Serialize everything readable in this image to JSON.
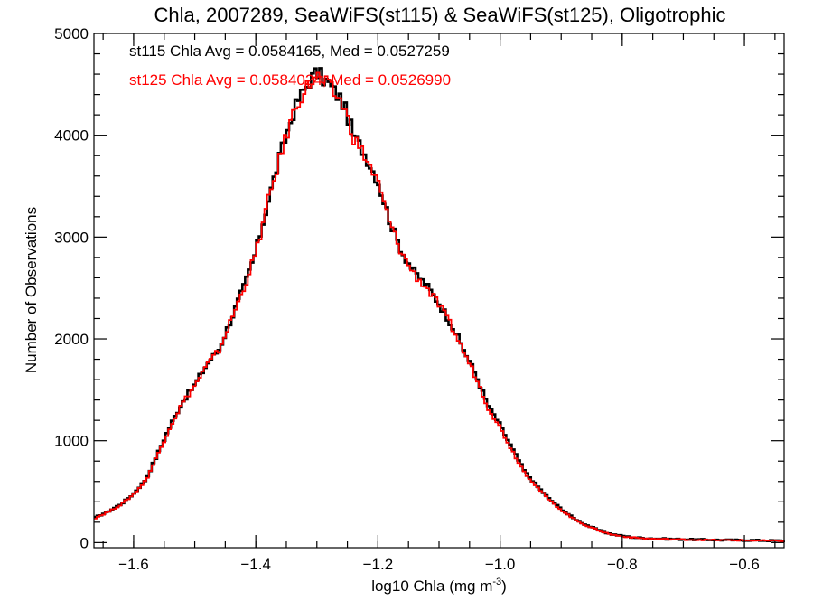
{
  "chart_data": {
    "type": "line",
    "title": "Chla, 2007289, SeaWiFS(st115) & SeaWiFS(st125), Oligotrophic",
    "xlabel": "log10 Chla (mg m",
    "xlabel_sup": "-3",
    "xlabel_end": ")",
    "ylabel": "Number of Observations",
    "xlim": [
      -1.665,
      -0.535
    ],
    "ylim": [
      -50,
      5000
    ],
    "grid": false,
    "x_ticks": [
      -1.6,
      -1.4,
      -1.2,
      -1.0,
      -0.8,
      -0.6
    ],
    "x_tick_labels": [
      "−1.6",
      "−1.4",
      "−1.2",
      "−1.0",
      "−0.8",
      "−0.6"
    ],
    "y_ticks": [
      0,
      1000,
      2000,
      3000,
      4000,
      5000
    ],
    "y_tick_labels": [
      "0",
      "1000",
      "2000",
      "3000",
      "4000",
      "5000"
    ],
    "annotations": [
      {
        "text": "st115 Chla Avg = 0.0584165, Med = 0.0527259",
        "color": "#000000"
      },
      {
        "text": "st125 Chla Avg = 0.0584024, Med = 0.0526990",
        "color": "#ff0000"
      }
    ],
    "series": [
      {
        "color": "#000000",
        "x": [
          -1.665,
          -1.64,
          -1.62,
          -1.6,
          -1.58,
          -1.56,
          -1.54,
          -1.52,
          -1.5,
          -1.48,
          -1.46,
          -1.44,
          -1.42,
          -1.4,
          -1.38,
          -1.36,
          -1.35,
          -1.34,
          -1.33,
          -1.32,
          -1.31,
          -1.3,
          -1.29,
          -1.28,
          -1.27,
          -1.26,
          -1.25,
          -1.24,
          -1.22,
          -1.2,
          -1.18,
          -1.16,
          -1.14,
          -1.12,
          -1.1,
          -1.08,
          -1.06,
          -1.04,
          -1.02,
          -1.0,
          -0.98,
          -0.96,
          -0.94,
          -0.92,
          -0.9,
          -0.88,
          -0.86,
          -0.84,
          -0.82,
          -0.8,
          -0.78,
          -0.76,
          -0.74,
          -0.72,
          -0.7,
          -0.68,
          -0.66,
          -0.64,
          -0.62,
          -0.6,
          -0.58,
          -0.56,
          -0.535
        ],
        "y": [
          240,
          310,
          380,
          480,
          620,
          880,
          1150,
          1380,
          1550,
          1750,
          1900,
          2200,
          2500,
          2850,
          3350,
          3800,
          4000,
          4200,
          4350,
          4450,
          4550,
          4620,
          4560,
          4500,
          4420,
          4350,
          4200,
          4000,
          3800,
          3550,
          3150,
          2850,
          2650,
          2520,
          2350,
          2150,
          1900,
          1650,
          1350,
          1150,
          920,
          700,
          560,
          430,
          330,
          240,
          175,
          125,
          85,
          65,
          50,
          42,
          38,
          35,
          32,
          30,
          28,
          26,
          25,
          24,
          22,
          20,
          18
        ]
      },
      {
        "color": "#ff0000",
        "x": [
          -1.665,
          -1.64,
          -1.62,
          -1.6,
          -1.58,
          -1.56,
          -1.54,
          -1.52,
          -1.5,
          -1.48,
          -1.46,
          -1.44,
          -1.42,
          -1.4,
          -1.38,
          -1.36,
          -1.35,
          -1.34,
          -1.33,
          -1.32,
          -1.31,
          -1.3,
          -1.29,
          -1.28,
          -1.27,
          -1.26,
          -1.25,
          -1.24,
          -1.22,
          -1.2,
          -1.18,
          -1.16,
          -1.14,
          -1.12,
          -1.1,
          -1.08,
          -1.06,
          -1.04,
          -1.02,
          -1.0,
          -0.98,
          -0.96,
          -0.94,
          -0.92,
          -0.9,
          -0.88,
          -0.86,
          -0.84,
          -0.82,
          -0.8,
          -0.78,
          -0.76,
          -0.74,
          -0.72,
          -0.7,
          -0.68,
          -0.66,
          -0.64,
          -0.62,
          -0.6,
          -0.58,
          -0.56,
          -0.535
        ],
        "y": [
          235,
          305,
          375,
          475,
          610,
          870,
          1140,
          1370,
          1540,
          1740,
          1890,
          2190,
          2490,
          2840,
          3340,
          3790,
          3990,
          4190,
          4340,
          4440,
          4520,
          4580,
          4530,
          4480,
          4400,
          4330,
          4180,
          3980,
          3780,
          3530,
          3130,
          2830,
          2630,
          2500,
          2330,
          2130,
          1880,
          1630,
          1330,
          1130,
          900,
          690,
          550,
          420,
          320,
          235,
          170,
          122,
          82,
          62,
          48,
          40,
          36,
          33,
          30,
          28,
          26,
          24,
          23,
          22,
          20,
          18,
          16
        ]
      }
    ]
  }
}
